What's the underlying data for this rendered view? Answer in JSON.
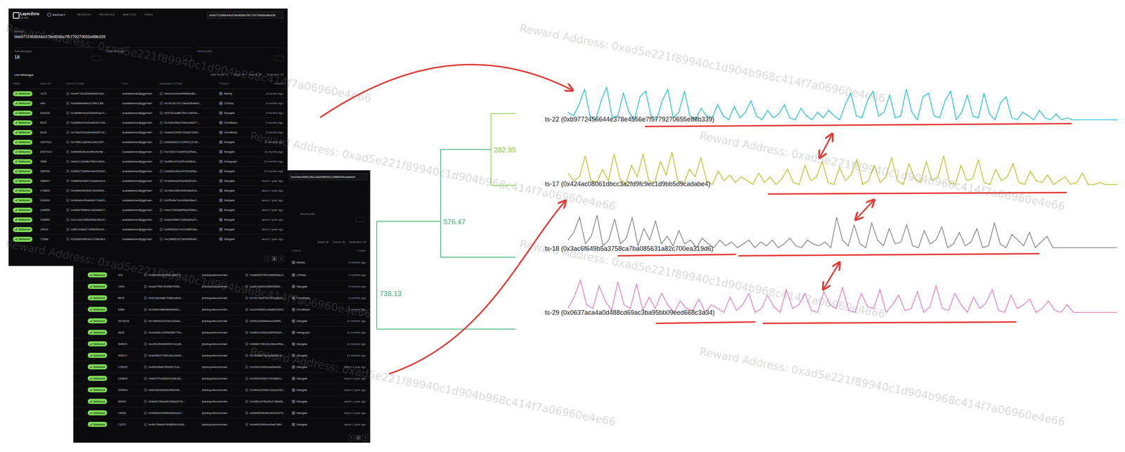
{
  "watermark": "Reward Address: 0xad5e221f89940c1d904b968c414f7a06960e4e66",
  "screenshots": [
    {
      "brand": "LayerZero",
      "brand_sub": "SCAN",
      "network": "MAINNET",
      "nav": [
        "MESSAGES",
        "PROTOCOLS",
        "ANALYTICS",
        "TOOLS"
      ],
      "search": "0xb9772456644e378e4556e7f5779270655e88b339",
      "address_label": "Address",
      "address": "0xb9772456644e378e4556e7f5779270655e88b339",
      "stats": [
        {
          "label": "Total Messages",
          "value": "18"
        },
        {
          "label": "Inflight Messages"
        },
        {
          "label": "Volume (24h)"
        }
      ],
      "section": "Live Messages",
      "filters": [
        "Date Range: All",
        "Status: All",
        "Source: All",
        "Destination: All"
      ],
      "columns": [
        "Status",
        "Nonce ID",
        "Source Tx Hash",
        "From",
        "Destination Tx Hash",
        "Protocol",
        "Created"
      ],
      "rows": [
        [
          "Delivered",
          "1472",
          "0xe9f7761d2d90dbb916d...",
          "scadadeeree@gg/main",
          "0xe91e02ea4f99b0bc8b...",
          "Merkly",
          "3 months ago"
        ],
        [
          "Delivered",
          "440",
          "0xbb8484abb1b7f9fc13f9...",
          "scadadeeree@gg/main",
          "0x1972677e176e493bd8e4...",
          "L2Pass",
          "3 months ago"
        ],
        [
          "Delivered",
          "616202",
          "0x3848b44ee934e4fcae7c...",
          "scadadeeree@gg/main",
          "0x57314c8f6755c718f34a...",
          "Stargate",
          "4 months ago"
        ],
        [
          "Delivered",
          "6022",
          "0xdf05be9130ee810b7159...",
          "scadadeeree@gg/main",
          "0x7b2b35ba7f4efecb8a77...",
          "OmniBase",
          "4 months ago"
        ],
        [
          "Delivered",
          "6216",
          "0x7c6e929ca634ae53f72e...",
          "scadadeeree@gg/main",
          "0xeeb21f4087163a67635f...",
          "OmniBase",
          "4 months ago"
        ],
        [
          "Delivered",
          "2057313",
          "0x706611a82b1c04e1307...",
          "scadadeeree@gg/main",
          "0x6ddbb5121345421213b...",
          "Stargate",
          "11 months ago"
        ],
        [
          "Delivered",
          "2057314",
          "0x6b59526cdc05b34e4fe...",
          "scadadeeree@gg/main",
          "0x215b372cd6f0162f0da...",
          "Stargate",
          "11 months ago"
        ],
        [
          "Delivered",
          "3658",
          "0xb2c21a0a8e7f4b2c90a1...",
          "scadadeeree@gg/main",
          "0x4d81c07e2ff1a93b64c...",
          "Holograph",
          "12 months ago"
        ],
        [
          "Delivered",
          "298700",
          "0x0b527c8b9e44a1f03dd2...",
          "scadadeeree@gg/main",
          "0x8a26cd9e14f7b03a59e...",
          "Stargate",
          "12 months ago"
        ],
        [
          "Delivered",
          "280637",
          "0x5b5f2e9d871c4a0be223...",
          "scadadeeree@gg/main",
          "0x3e63ea200b28e85183...",
          "Stargate",
          "about 1 year ago"
        ],
        [
          "Delivered",
          "178832",
          "0xd38fe4f0c52b7a19e640...",
          "scadadeeree@gg/main",
          "0x7d4e1a5fc92b038e61d...",
          "Stargate",
          "about 1 year ago"
        ],
        [
          "Delivered",
          "243603",
          "0x9e0ebc0f4a6d2e71b8c5...",
          "scadadeeree@gg/main",
          "0x2f5c8a71e0d94b36ac2...",
          "Stargate",
          "about 1 year ago"
        ],
        [
          "Delivered",
          "234855",
          "0x4abd7f69b0c13e5a8d27...",
          "scadadeeree@gg/main",
          "0xb1c7d43e8f06a2959e1...",
          "Stargate",
          "about 1 year ago"
        ],
        [
          "Delivered",
          "236664",
          "0x1c7ae79d5b3f08c46a12...",
          "scadadeeree@gg/main",
          "0x6e24bf9071d5c8a3e47...",
          "Stargate",
          "about 1 year ago"
        ],
        [
          "Delivered",
          "14519",
          "0x8f1c0a6e27d94b5f31e0...",
          "scadadeeree@gg/main",
          "0x5d90a2e7c61b48f03ad...",
          "Stargate",
          "about 1 year ago"
        ],
        [
          "Delivered",
          "71068",
          "0x2e6b93fd04a7c158e9b4...",
          "scadadeeree@gg/main",
          "0xc3a85e1f27d0b946e82...",
          "Stargate",
          "about 1 year ago"
        ]
      ],
      "pages": [
        "1"
      ]
    },
    {
      "search": "0x424ac08061dbcc3a2fd9fc9ec1d9bb5d9cadabe4",
      "stat": "Volume (24h)",
      "filters": [
        "Status: All",
        "Source: All",
        "Destination: All"
      ],
      "columns": [
        "Protocol",
        "Created"
      ],
      "first_row": {
        "protocol": "Merkly",
        "created": "3 months ago"
      },
      "rows": [
        [
          "Delivered",
          "403",
          "0x9d2e85c6cd5b139873...",
          "jhdotuyzdevoz/main",
          "0x8a08157543285656ac4...",
          "L2Pass",
          "3 months ago"
        ],
        [
          "Delivered",
          "1440",
          "0xeab7f907403f9b7f05d...",
          "jhdotuyzdevoz/main",
          "0xaf11b8fcb16f80c65b2...",
          "Stargate",
          "3 months ago"
        ],
        [
          "Delivered",
          "8676",
          "0x4216e0d8c7b3f81a6e9...",
          "jhdotuyzdevoz/main",
          "0x74176ee7f01015a962a...",
          "OmniBase",
          "4 months ago"
        ],
        [
          "Delivered",
          "6389",
          "0xc6df1098bd8bd5ab0c...",
          "jhdotuyzdevoz/main",
          "0xa10450e1cd4a82b1643...",
          "OmniBase",
          "4 months ago"
        ],
        [
          "Delivered",
          "2073229",
          "0xc4fb5f2ee225e1160e8...",
          "jhdotuyzdevoz/main",
          "0x5f2c2f3d4a0ea2a0f96...",
          "Stargate",
          "11 months ago"
        ],
        [
          "Delivered",
          "3629",
          "0xc0c60e1e5f0b2867754...",
          "jhdotuyzdevoz/main",
          "0xdf031340be282f54bd1...",
          "Holograph",
          "11 months ago"
        ],
        [
          "Delivered",
          "308021",
          "0xc29c2bf16909917e1d8...",
          "jhdotuyzdevoz/main",
          "0x0b827362c5c43ee490a...",
          "Stargate",
          "11 months ago"
        ],
        [
          "Delivered",
          "308017",
          "0xab4f822708015e14bd9...",
          "jhdotuyzdevoz/main",
          "0x7f2fa8d79cc2a8ed419...",
          "Stargate",
          "12 months ago"
        ],
        [
          "Delivered",
          "178025",
          "0xd05d3fd6765b0072c6...",
          "jhdotuyzdevoz/main",
          "0x200412e6bca4f9a908...",
          "Stargate",
          "about 1 year ago"
        ],
        [
          "Delivered",
          "243603",
          "0xbb1f70ca64e92c96c38...",
          "jhdotuyzdevoz/main",
          "0x293c93482719048e0c...",
          "Stargate",
          "about 1 year ago"
        ],
        [
          "Delivered",
          "220604",
          "0xbe0d2a26a0e4fb6460...",
          "jhdotuyzdevoz/main",
          "0x394cd1995e7d1ace252...",
          "Stargate",
          "about 1 year ago"
        ],
        [
          "Delivered",
          "36904",
          "0x6a3278bdaf41966e5724...",
          "jhdotuyzdevoz/main",
          "0x3262c975cc5e27d6d95...",
          "Stargate",
          "about 1 year ago"
        ],
        [
          "Delivered",
          "14635",
          "0x9364e0230b646d91a17...",
          "jhdotuyzdevoz/main",
          "0x9946095c50169182a73...",
          "Stargate",
          "about 1 year ago"
        ],
        [
          "Delivered",
          "71072",
          "0x4fc798bd97b086049c189...",
          "jhdotuyzdevoz/main",
          "0x0b9534494ecbad7d80...",
          "Stargate",
          "about 1 year ago"
        ]
      ],
      "pages": [
        "1"
      ]
    }
  ],
  "dendrogram": {
    "distances": [
      282.95,
      576.47,
      738.13
    ]
  },
  "chart_data": {
    "type": "line",
    "ylim": [
      0,
      1
    ],
    "tick_labels": false,
    "series": [
      {
        "name": "ts-22 (0xb9772456644e378e4556e7f5779270655e88b339)",
        "color": "#17becf",
        "values": [
          0.3,
          0.2,
          0.5,
          0.9,
          0.2,
          0.1,
          0.6,
          0.95,
          0.15,
          0.2,
          0.8,
          0.3,
          0.1,
          0.7,
          0.85,
          0.2,
          0.1,
          0.6,
          0.9,
          0.15,
          0.3,
          0.85,
          0.2,
          0.1,
          0.4,
          0.2,
          0.15,
          0.5,
          0.2,
          0.1,
          0.45,
          0.15,
          0.3,
          0.6,
          0.2,
          0.1,
          0.35,
          0.15,
          0.25,
          0.5,
          0.15,
          0.1,
          0.4,
          0.2,
          0.1,
          0.3,
          0.15,
          0.35,
          0.2,
          0.1,
          0.5,
          0.8,
          0.2,
          0.15,
          0.6,
          0.85,
          0.2,
          0.3,
          0.75,
          0.15,
          0.2,
          0.9,
          0.3,
          0.1,
          0.7,
          0.8,
          0.2,
          0.15,
          0.6,
          0.85,
          0.1,
          0.3,
          0.75,
          0.2,
          0.15,
          0.8,
          0.25,
          0.1,
          0.55,
          0.7,
          0.15,
          0.1,
          0.3,
          0.2,
          0.1,
          0.35,
          0.15,
          0.1,
          0.25,
          0.1,
          0.15,
          0.1,
          0.1,
          0.1,
          0.1,
          0.1,
          0.1,
          0.1,
          0.1,
          0.1
        ]
      },
      {
        "name": "ts-17 (0x424ac08061dbcc3a2fd9fc9ec1d9bb5d9cadabe4)",
        "color": "#bcbd22",
        "values": [
          0.4,
          0.2,
          0.3,
          0.85,
          0.2,
          0.15,
          0.5,
          0.2,
          0.9,
          0.25,
          0.1,
          0.6,
          0.3,
          0.9,
          0.2,
          0.15,
          0.7,
          0.35,
          0.95,
          0.2,
          0.1,
          0.5,
          0.3,
          0.8,
          0.2,
          0.1,
          0.45,
          0.2,
          0.35,
          0.15,
          0.3,
          0.2,
          0.1,
          0.4,
          0.15,
          0.3,
          0.1,
          0.25,
          0.5,
          0.15,
          0.1,
          0.6,
          0.2,
          0.3,
          0.7,
          0.15,
          0.1,
          0.55,
          0.2,
          0.35,
          0.75,
          0.1,
          0.2,
          0.6,
          0.15,
          0.3,
          0.8,
          0.2,
          0.1,
          0.65,
          0.25,
          0.15,
          0.7,
          0.2,
          0.3,
          0.85,
          0.15,
          0.1,
          0.6,
          0.2,
          0.25,
          0.75,
          0.15,
          0.1,
          0.5,
          0.2,
          0.3,
          0.65,
          0.15,
          0.1,
          0.45,
          0.2,
          0.15,
          0.35,
          0.1,
          0.2,
          0.3,
          0.1,
          0.15,
          0.4,
          0.1,
          0.1,
          0.15,
          0.1,
          0.1,
          0.1
        ]
      },
      {
        "name": "ts-18 (0x3ac6f649b5a3758ca7ba085631a82c700ea319d6)",
        "color": "#7f7f7f",
        "values": [
          0.3,
          0.5,
          0.9,
          0.2,
          0.4,
          0.95,
          0.15,
          0.3,
          0.85,
          0.2,
          0.35,
          0.9,
          0.15,
          0.6,
          0.3,
          0.8,
          0.2,
          0.4,
          0.15,
          0.55,
          0.2,
          0.3,
          0.1,
          0.35,
          0.2,
          0.1,
          0.3,
          0.15,
          0.25,
          0.1,
          0.2,
          0.3,
          0.1,
          0.25,
          0.15,
          0.3,
          0.1,
          0.2,
          0.35,
          0.15,
          0.1,
          0.3,
          0.2,
          0.15,
          0.25,
          0.1,
          0.9,
          0.3,
          0.15,
          0.7,
          0.2,
          0.1,
          0.75,
          0.3,
          0.15,
          0.6,
          0.2,
          0.25,
          0.7,
          0.15,
          0.1,
          0.55,
          0.2,
          0.3,
          0.65,
          0.1,
          0.2,
          0.5,
          0.15,
          0.25,
          0.6,
          0.1,
          0.15,
          0.75,
          0.2,
          0.1,
          0.45,
          0.3,
          0.15,
          0.5,
          0.1,
          0.25,
          0.4,
          0.1,
          0.1,
          0.1,
          0.1,
          0.1,
          0.1,
          0.1,
          0.1,
          0.1,
          0.1,
          0.1,
          0.1
        ]
      },
      {
        "name": "ts-29 (0x0637aca4a0d488cd69ac3ba95bb09eed668c3a34)",
        "color": "#e377c2",
        "values": [
          0.2,
          0.5,
          0.95,
          0.3,
          0.2,
          0.8,
          0.4,
          0.15,
          0.9,
          0.3,
          0.2,
          0.85,
          0.15,
          0.5,
          0.2,
          0.6,
          0.3,
          0.1,
          0.4,
          0.2,
          0.15,
          0.45,
          0.1,
          0.3,
          0.2,
          0.1,
          0.5,
          0.15,
          0.3,
          0.6,
          0.1,
          0.2,
          0.55,
          0.25,
          0.1,
          0.7,
          0.2,
          0.3,
          0.6,
          0.15,
          0.1,
          0.65,
          0.3,
          0.2,
          0.75,
          0.15,
          0.1,
          0.6,
          0.25,
          0.2,
          0.7,
          0.1,
          0.3,
          0.55,
          0.15,
          0.2,
          0.65,
          0.1,
          0.25,
          0.8,
          0.2,
          0.15,
          0.6,
          0.3,
          0.1,
          0.5,
          0.2,
          0.35,
          0.7,
          0.15,
          0.1,
          0.55,
          0.2,
          0.3,
          0.45,
          0.1,
          0.2,
          0.4,
          0.15,
          0.1,
          0.3,
          0.1,
          0.1,
          0.1,
          0.1,
          0.1,
          0.1,
          0.1,
          0.1
        ]
      }
    ]
  }
}
